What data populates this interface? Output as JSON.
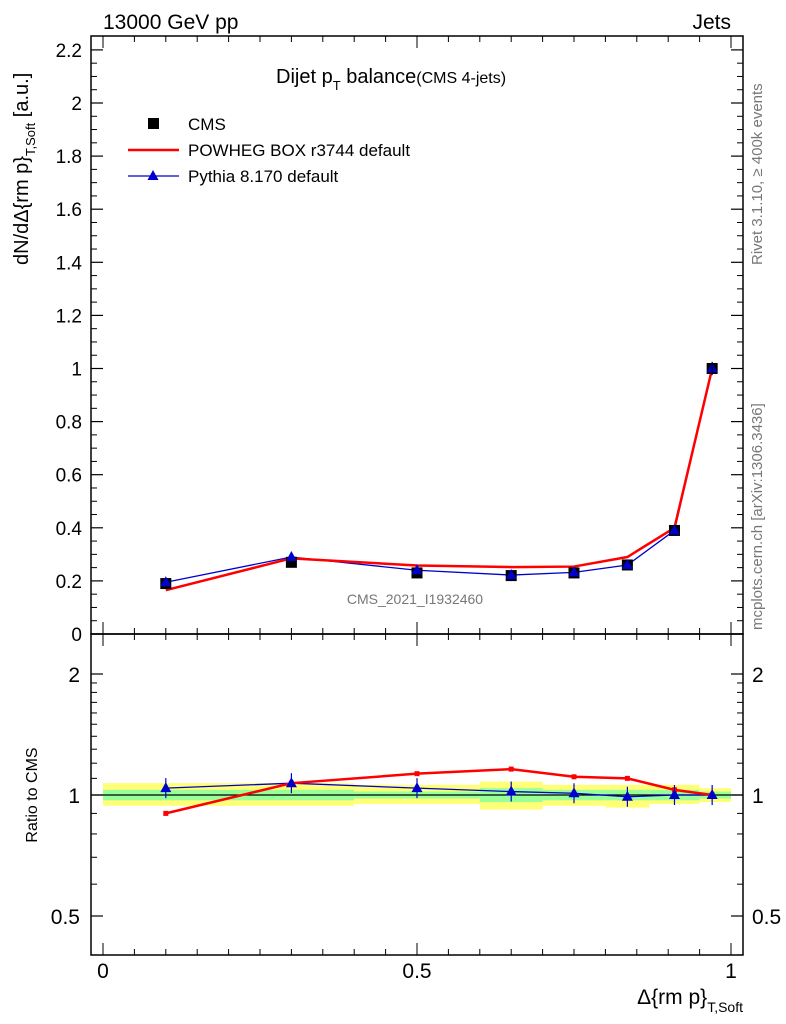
{
  "header": {
    "left": "13000 GeV pp",
    "right": "Jets"
  },
  "side_labels": {
    "rivet": "Rivet 3.1.10, ≥ 400k events",
    "mcplots": "mcplots.cern.ch [arXiv:1306.3436]"
  },
  "colors": {
    "cms": "#000000",
    "powheg": "#ff0000",
    "pythia": "#0000cc",
    "band_inner": "#99ff99",
    "band_outer": "#ffff77"
  },
  "chart_data": [
    {
      "type": "line",
      "title": "Dijet p_T balance",
      "title_parts": {
        "main": "Dijet p",
        "sub": "T",
        "rest": " balance",
        "note": "(CMS 4-jets)"
      },
      "watermark": "CMS_2021_I1932460",
      "ylabel_parts": {
        "main": "dN/dΔ{rm p}",
        "sub": "T,Soft",
        "unit": " [a.u.]"
      },
      "xlim": [
        0,
        1
      ],
      "ylim": [
        0,
        2.25
      ],
      "yticks": [
        0,
        0.2,
        0.4,
        0.6,
        0.8,
        1,
        1.2,
        1.4,
        1.6,
        1.8,
        2,
        2.2
      ],
      "ytick_labels": [
        "0",
        "0.2",
        "0.4",
        "0.6",
        "0.8",
        "1",
        "1.2",
        "1.4",
        "1.6",
        "1.8",
        "2",
        "2.2"
      ],
      "legend": {
        "placement": "top-left",
        "entries": [
          "CMS",
          "POWHEG BOX r3744 default",
          "Pythia 8.170 default"
        ]
      },
      "series": [
        {
          "name": "CMS",
          "marker": "square",
          "x": [
            0.1,
            0.3,
            0.5,
            0.65,
            0.75,
            0.835,
            0.91,
            0.97
          ],
          "y": [
            0.19,
            0.27,
            0.23,
            0.22,
            0.23,
            0.26,
            0.39,
            1.0
          ]
        },
        {
          "name": "POWHEG BOX r3744 default",
          "marker": "none",
          "x": [
            0.1,
            0.3,
            0.5,
            0.65,
            0.75,
            0.835,
            0.91,
            0.97
          ],
          "y": [
            0.165,
            0.285,
            0.258,
            0.252,
            0.254,
            0.29,
            0.4,
            1.0
          ]
        },
        {
          "name": "Pythia 8.170 default",
          "marker": "triangle",
          "x": [
            0.1,
            0.3,
            0.5,
            0.65,
            0.75,
            0.835,
            0.91,
            0.97
          ],
          "y": [
            0.195,
            0.29,
            0.24,
            0.222,
            0.232,
            0.26,
            0.39,
            1.0
          ]
        }
      ]
    },
    {
      "type": "line",
      "ylabel": "Ratio to CMS",
      "xlabel_parts": {
        "main": "Δ{rm p}",
        "sub": "T,Soft"
      },
      "xlim": [
        0,
        1
      ],
      "ylim": [
        0.37,
        2.4
      ],
      "yscale": "log",
      "xticks": [
        0,
        0.5,
        1
      ],
      "xtick_labels": [
        "0",
        "0.5",
        "1"
      ],
      "yticks": [
        0.5,
        1,
        2
      ],
      "ytick_labels": [
        "0.5",
        "1",
        "2"
      ],
      "uncertainty_bands": {
        "x_edges": [
          0,
          0.2,
          0.4,
          0.6,
          0.7,
          0.8,
          0.87,
          0.95,
          1.0
        ],
        "inner": [
          [
            0.97,
            1.03
          ],
          [
            0.97,
            1.03
          ],
          [
            0.98,
            1.02
          ],
          [
            0.96,
            1.04
          ],
          [
            0.97,
            1.03
          ],
          [
            0.97,
            1.03
          ],
          [
            0.97,
            1.03
          ],
          [
            0.98,
            1.02
          ]
        ],
        "outer": [
          [
            0.94,
            1.07
          ],
          [
            0.94,
            1.07
          ],
          [
            0.95,
            1.06
          ],
          [
            0.92,
            1.08
          ],
          [
            0.94,
            1.06
          ],
          [
            0.93,
            1.06
          ],
          [
            0.95,
            1.06
          ],
          [
            0.96,
            1.04
          ]
        ]
      },
      "series": [
        {
          "name": "POWHEG BOX r3744 default",
          "x": [
            0.1,
            0.3,
            0.5,
            0.65,
            0.75,
            0.835,
            0.91,
            0.97
          ],
          "y": [
            0.9,
            1.07,
            1.13,
            1.16,
            1.11,
            1.1,
            1.03,
            1.0
          ]
        },
        {
          "name": "Pythia 8.170 default",
          "x": [
            0.1,
            0.3,
            0.5,
            0.65,
            0.75,
            0.835,
            0.91,
            0.97
          ],
          "y": [
            1.04,
            1.07,
            1.04,
            1.02,
            1.01,
            0.99,
            1.0,
            1.0
          ]
        }
      ]
    }
  ]
}
